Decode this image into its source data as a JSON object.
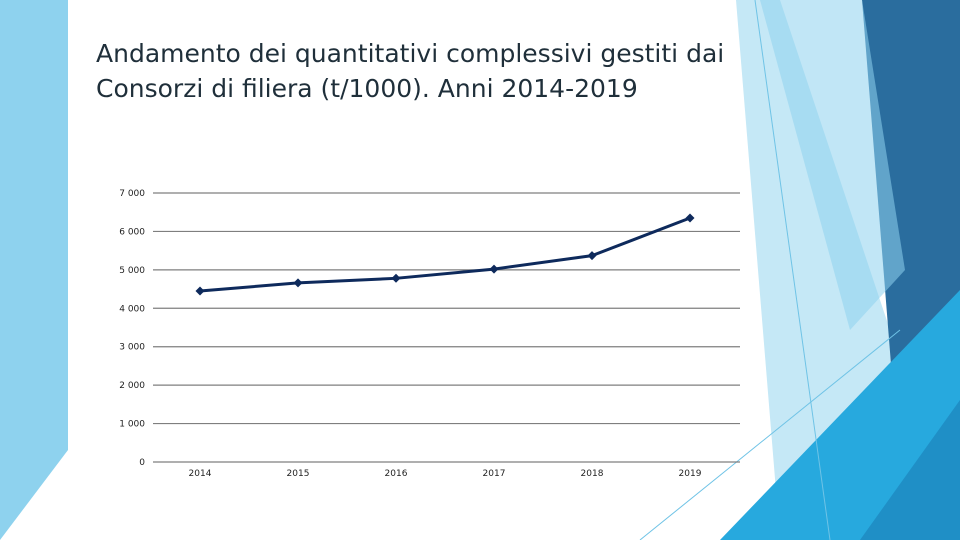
{
  "slide": {
    "title_lines": [
      "Andamento dei quantitativi complessivi gestiti dai",
      "Consorzi di filiera (t/1000). Anni 2014-2019"
    ]
  },
  "theme_colors": {
    "light_blue": "#8ed2ee",
    "pale_blue": "#c5e8f6",
    "sky_blue": "#27a9de",
    "dark_blue": "#2a6d9e",
    "line_color": "#0e2a5c"
  },
  "chart_data": {
    "type": "line",
    "title": "",
    "xlabel": "",
    "ylabel": "",
    "categories": [
      "2014",
      "2015",
      "2016",
      "2017",
      "2018",
      "2019"
    ],
    "series": [
      {
        "values": [
          4450,
          4660,
          4780,
          5020,
          5370,
          6350
        ]
      }
    ],
    "ylim": [
      0,
      7000
    ],
    "yticks": [
      0,
      1000,
      2000,
      3000,
      4000,
      5000,
      6000,
      7000
    ],
    "ytick_labels": [
      "0",
      "1 000",
      "2 000",
      "3 000",
      "4 000",
      "5 000",
      "6 000",
      "7 000"
    ],
    "grid": true,
    "marker": "diamond",
    "legend": "none"
  }
}
